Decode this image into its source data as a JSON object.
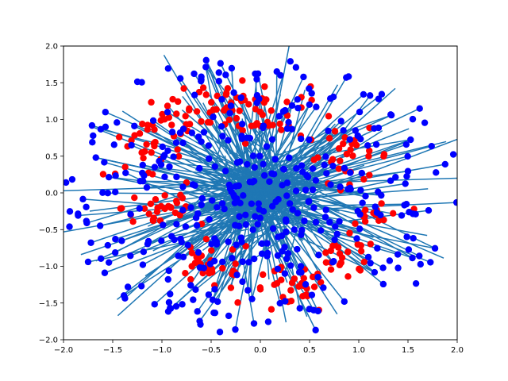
{
  "chart_data": {
    "type": "scatter",
    "title": "",
    "xlabel": "",
    "ylabel": "",
    "xlim": [
      -2.0,
      2.0
    ],
    "ylim": [
      -2.0,
      2.0
    ],
    "grid": false,
    "legend": "none",
    "colors": {
      "red_points": "#ff0000",
      "blue_points": "#0000ff",
      "lines": "#1f77b4",
      "axes": "#000000"
    },
    "x_ticks": [
      "−2.0",
      "−1.5",
      "−1.0",
      "−0.5",
      "0.0",
      "0.5",
      "1.0",
      "1.5",
      "2.0"
    ],
    "y_ticks": [
      "2.0",
      "1.5",
      "1.0",
      "0.5",
      "0.0",
      "−0.5",
      "−1.0",
      "−1.5",
      "−2.0"
    ],
    "x_tick_values": [
      -2.0,
      -1.5,
      -1.0,
      -0.5,
      0.0,
      0.5,
      1.0,
      1.5,
      2.0
    ],
    "y_tick_values": [
      2.0,
      1.5,
      1.0,
      0.5,
      0.0,
      -0.5,
      -1.0,
      -1.5,
      -2.0
    ],
    "red_clusters": [
      {
        "cx": 0.0,
        "cy": 1.1,
        "count": 40,
        "spread": 0.25
      },
      {
        "cx": -0.8,
        "cy": 1.0,
        "count": 25,
        "spread": 0.2
      },
      {
        "cx": 0.9,
        "cy": 0.5,
        "count": 30,
        "spread": 0.22
      },
      {
        "cx": -1.2,
        "cy": 0.55,
        "count": 25,
        "spread": 0.2
      },
      {
        "cx": -1.0,
        "cy": -0.2,
        "count": 30,
        "spread": 0.2
      },
      {
        "cx": -0.5,
        "cy": -1.0,
        "count": 30,
        "spread": 0.22
      },
      {
        "cx": 0.3,
        "cy": -1.35,
        "count": 30,
        "spread": 0.2
      },
      {
        "cx": 0.85,
        "cy": -0.9,
        "count": 25,
        "spread": 0.18
      },
      {
        "cx": 1.2,
        "cy": -0.3,
        "count": 15,
        "spread": 0.15
      },
      {
        "cx": -0.35,
        "cy": 1.3,
        "count": 20,
        "spread": 0.15
      }
    ],
    "blue_points_count": 420,
    "line_segments_count": 260,
    "note_visible": ""
  }
}
